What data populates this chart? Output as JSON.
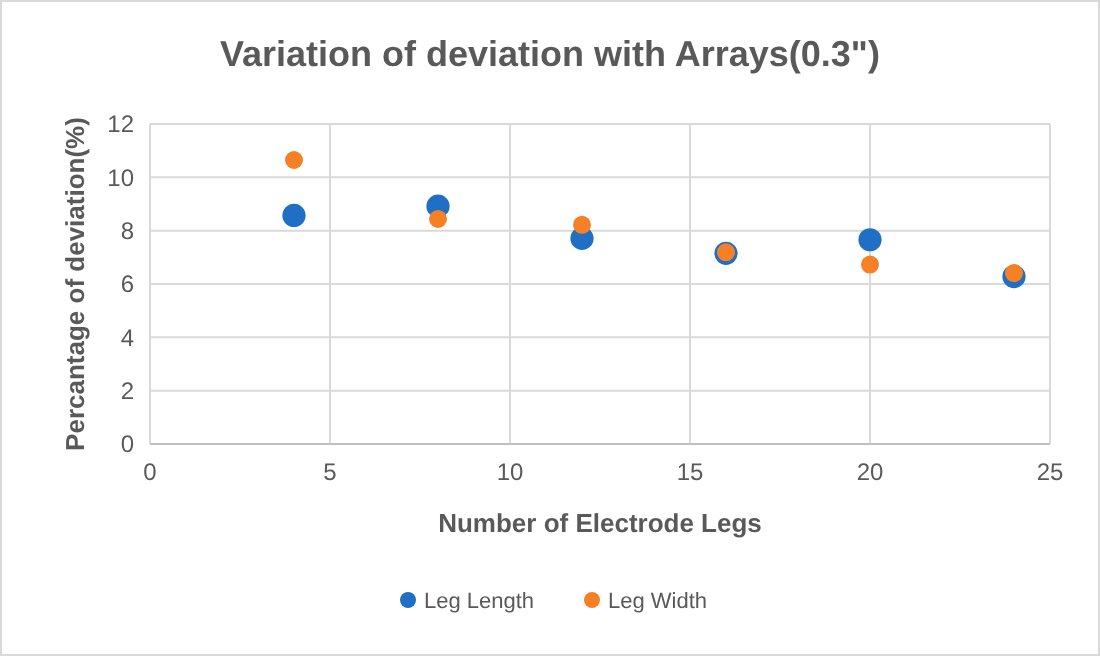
{
  "chart_data": {
    "type": "scatter",
    "title": "Variation of deviation with Arrays(0.3\")",
    "xlabel": "Number of Electrode Legs",
    "ylabel": "Percantage of deviation(%)",
    "x": [
      4,
      8,
      12,
      16,
      20,
      24
    ],
    "series": [
      {
        "name": "Leg Length",
        "color": "#1f6fc5",
        "values": [
          8.57,
          8.92,
          7.71,
          7.15,
          7.66,
          6.28
        ]
      },
      {
        "name": "Leg Width",
        "color": "#f58025",
        "values": [
          10.65,
          8.44,
          8.22,
          7.19,
          6.73,
          6.41
        ]
      }
    ],
    "xlim": [
      0,
      25
    ],
    "xticks": [
      0,
      5,
      10,
      15,
      20,
      25
    ],
    "ylim": [
      0,
      12
    ],
    "yticks": [
      0,
      2,
      4,
      6,
      8,
      10,
      12
    ],
    "grid": true,
    "legend": "bottom",
    "marker": "circle"
  }
}
